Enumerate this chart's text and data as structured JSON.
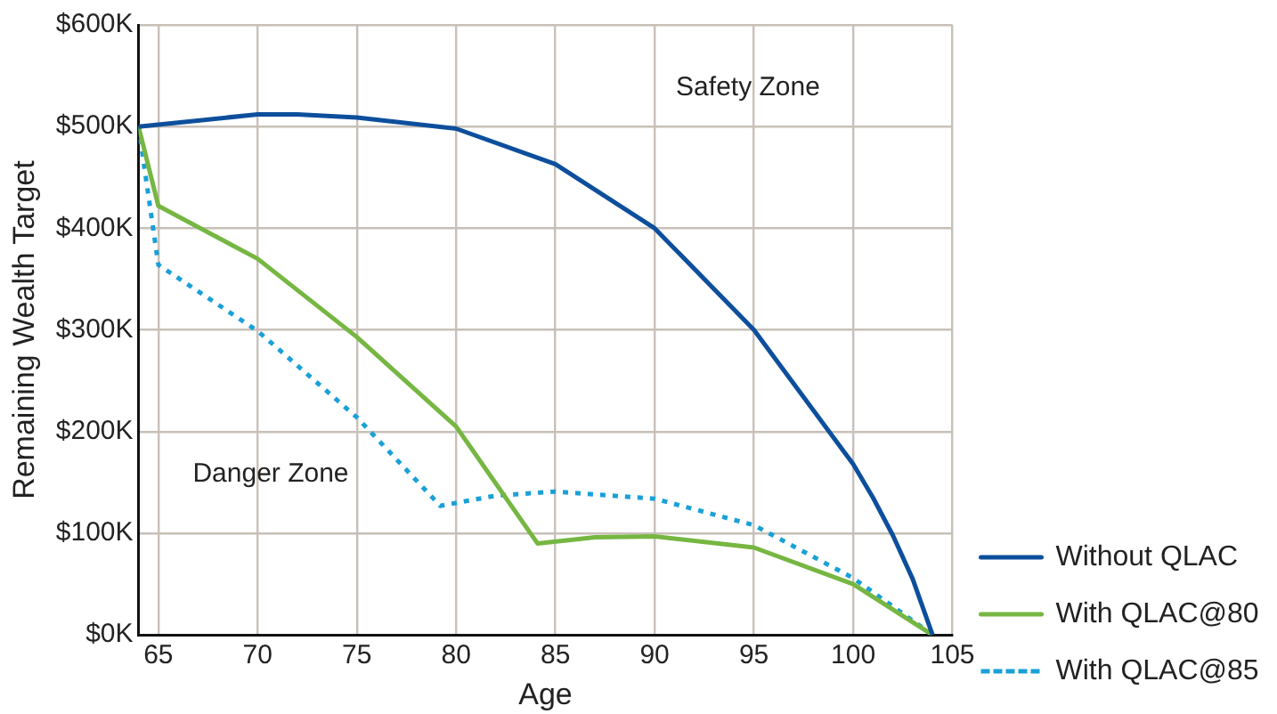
{
  "chart_data": {
    "type": "line",
    "xlabel": "Age",
    "ylabel": "Remaining Wealth Target",
    "xlim": [
      64,
      105
    ],
    "xticks": [
      65,
      70,
      75,
      80,
      85,
      90,
      95,
      100,
      105
    ],
    "ylim": [
      0,
      600
    ],
    "yticks": [
      {
        "value": 0,
        "label": "$0K"
      },
      {
        "value": 100,
        "label": "$100K"
      },
      {
        "value": 200,
        "label": "$200K"
      },
      {
        "value": 300,
        "label": "$300K"
      },
      {
        "value": 400,
        "label": "$400K"
      },
      {
        "value": 500,
        "label": "$500K"
      },
      {
        "value": 600,
        "label": "$600K"
      }
    ],
    "grid": true,
    "legend": "right",
    "marker": "none",
    "annotations": [
      "Safety Zone",
      "Danger Zone"
    ],
    "series": [
      {
        "name": "Without QLAC",
        "color": "#0d4f9c",
        "line_style": "solid",
        "x": [
          64,
          65,
          70,
          72,
          75,
          80,
          85,
          90,
          95,
          100,
          101,
          102,
          103,
          104
        ],
        "values": [
          500,
          502,
          512,
          512,
          509,
          498,
          463,
          400,
          300,
          168,
          135,
          98,
          55,
          0
        ]
      },
      {
        "name": "With QLAC@80",
        "color": "#76b642",
        "line_style": "solid",
        "x": [
          64,
          65,
          70,
          75,
          80,
          84.1,
          87,
          90,
          95,
          100,
          104
        ],
        "values": [
          500,
          422,
          370,
          293,
          205,
          90,
          96,
          97,
          86,
          50,
          0
        ]
      },
      {
        "name": "With QLAC@85",
        "color": "#1aa0d8",
        "line_style": "dotted",
        "x": [
          64,
          65,
          70,
          75,
          79.2,
          82,
          85,
          90,
          95,
          100,
          104
        ],
        "values": [
          500,
          364,
          299,
          214,
          127,
          137,
          141,
          134,
          108,
          56,
          0
        ]
      }
    ]
  }
}
